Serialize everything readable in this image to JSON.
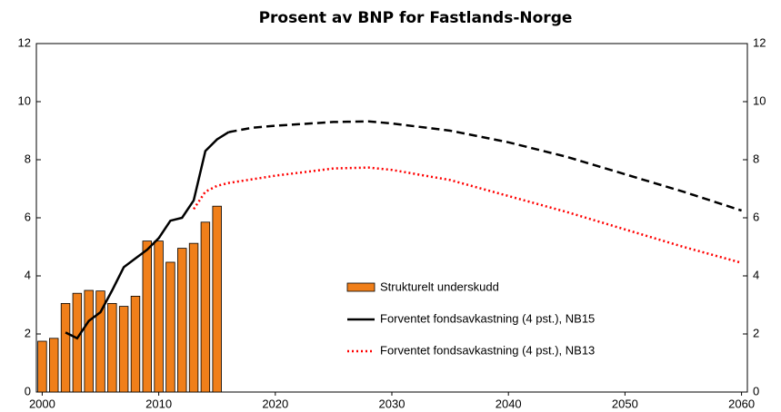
{
  "chart_data": {
    "type": "bar-line",
    "title": "Prosent av BNP for Fastlands-Norge",
    "xlim": [
      1999.5,
      2060.5
    ],
    "xticks": [
      2000,
      2010,
      2020,
      2030,
      2040,
      2050,
      2060
    ],
    "ylim": [
      0,
      12
    ],
    "yticks": [
      0,
      2,
      4,
      6,
      8,
      10,
      12
    ],
    "y2lim": [
      0,
      12
    ],
    "y2ticks": [
      0,
      2,
      4,
      6,
      8,
      10,
      12
    ],
    "bars": {
      "name": "Strukturelt underskudd",
      "color": "#f07f1a",
      "x": [
        2000,
        2001,
        2002,
        2003,
        2004,
        2005,
        2006,
        2007,
        2008,
        2009,
        2010,
        2011,
        2012,
        2013,
        2014,
        2015
      ],
      "values": [
        1.75,
        1.85,
        3.05,
        3.4,
        3.5,
        3.48,
        3.05,
        2.95,
        3.3,
        5.2,
        5.2,
        4.47,
        4.95,
        5.12,
        5.85,
        6.4
      ]
    },
    "series": [
      {
        "name": "Forventet fondsavkastning (4 pst.), NB15",
        "color": "#000000",
        "dashed_from": 2016,
        "x": [
          2002,
          2003,
          2004,
          2005,
          2006,
          2007,
          2008,
          2009,
          2010,
          2011,
          2012,
          2013,
          2014,
          2015,
          2016,
          2018,
          2020,
          2025,
          2028,
          2030,
          2035,
          2040,
          2045,
          2050,
          2055,
          2060
        ],
        "values": [
          2.05,
          1.85,
          2.45,
          2.75,
          3.5,
          4.3,
          4.6,
          4.9,
          5.3,
          5.9,
          6.0,
          6.6,
          8.3,
          8.7,
          8.95,
          9.1,
          9.17,
          9.3,
          9.32,
          9.25,
          9.0,
          8.6,
          8.1,
          7.5,
          6.9,
          6.25
        ]
      },
      {
        "name": "Forventet fondsavkastning (4 pst.), NB13",
        "color": "#ff0000",
        "dotted": true,
        "x": [
          2013,
          2014,
          2015,
          2016,
          2020,
          2025,
          2028,
          2030,
          2035,
          2040,
          2045,
          2050,
          2055,
          2060
        ],
        "values": [
          6.3,
          6.9,
          7.1,
          7.2,
          7.45,
          7.7,
          7.73,
          7.65,
          7.3,
          6.75,
          6.2,
          5.6,
          5.0,
          4.45
        ]
      }
    ]
  }
}
